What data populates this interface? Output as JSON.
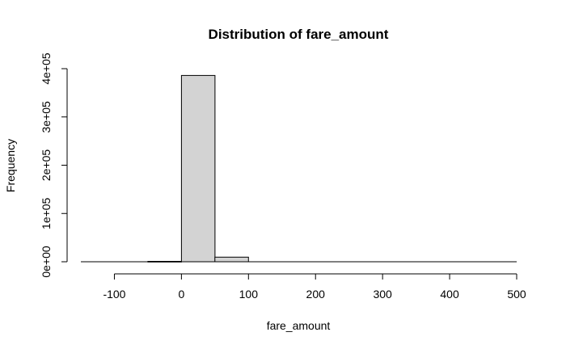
{
  "chart_data": {
    "type": "bar",
    "title": "Distribution of fare_amount",
    "xlabel": "fare_amount",
    "ylabel": "Frequency",
    "xlim": [
      -150,
      500
    ],
    "ylim": [
      0,
      400000
    ],
    "x_ticks": [
      -100,
      0,
      100,
      200,
      300,
      400,
      500
    ],
    "x_tick_labels": [
      "-100",
      "0",
      "100",
      "200",
      "300",
      "400",
      "500"
    ],
    "y_ticks": [
      0,
      100000,
      200000,
      300000,
      400000
    ],
    "y_tick_labels": [
      "0e+00",
      "1e+05",
      "2e+05",
      "3e+05",
      "4e+05"
    ],
    "bins": [
      {
        "from": -50,
        "to": 0,
        "count": 800
      },
      {
        "from": 0,
        "to": 50,
        "count": 386000
      },
      {
        "from": 50,
        "to": 100,
        "count": 9500
      }
    ],
    "bar_fill": "#d3d3d3",
    "baseline_range": [
      -150,
      500
    ],
    "grid": false
  }
}
